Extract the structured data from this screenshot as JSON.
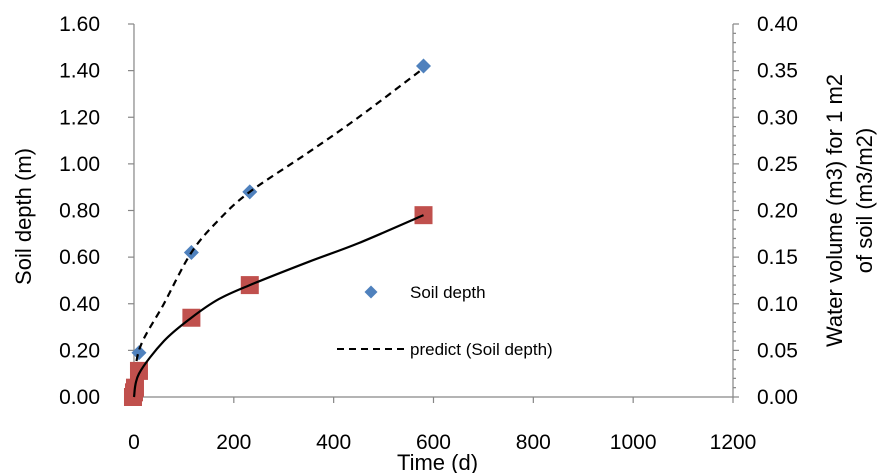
{
  "chart_data": {
    "type": "scatter",
    "xlabel": "Time (d)",
    "ylabel": "Soil depth (m)",
    "y2label_line1": "Water volume (m3) for  1 m2",
    "y2label_line2": "of soil (m3/m2)",
    "xlim": [
      -20,
      1200
    ],
    "x_ticks": [
      0,
      200,
      400,
      600,
      800,
      1000,
      1200
    ],
    "ylim": [
      0,
      1.6
    ],
    "y_ticks": [
      "0.00",
      "0.20",
      "0.40",
      "0.60",
      "0.80",
      "1.00",
      "1.20",
      "1.40",
      "1.60"
    ],
    "y2lim": [
      0,
      0.4
    ],
    "y2_ticks": [
      "0.00",
      "0.05",
      "0.10",
      "0.15",
      "0.20",
      "0.25",
      "0.30",
      "0.35",
      "0.40"
    ],
    "legend_position": "center",
    "series": [
      {
        "name": "Soil depth",
        "axis": "left",
        "marker": "diamond",
        "color": "#4f81bd",
        "x": [
          10,
          115,
          232,
          580
        ],
        "y": [
          0.19,
          0.62,
          0.88,
          1.42
        ]
      },
      {
        "name": "predict (Soil depth)",
        "axis": "left",
        "style": "dashed",
        "color": "#000000",
        "x": [
          0,
          10,
          60,
          115,
          170,
          232,
          350,
          450,
          580
        ],
        "y": [
          0.0,
          0.2,
          0.4,
          0.62,
          0.76,
          0.88,
          1.05,
          1.2,
          1.41
        ]
      },
      {
        "axis": "right",
        "marker": "square",
        "color": "#c0504d",
        "x": [
          -2,
          0,
          2,
          10,
          115,
          232,
          580
        ],
        "y": [
          0.0,
          0.005,
          0.01,
          0.028,
          0.085,
          0.12,
          0.195
        ]
      },
      {
        "axis": "right",
        "style": "solid",
        "color": "#000000",
        "x": [
          0,
          10,
          60,
          115,
          170,
          232,
          350,
          450,
          580
        ],
        "y": [
          0.0,
          0.025,
          0.06,
          0.085,
          0.105,
          0.12,
          0.145,
          0.165,
          0.195
        ]
      }
    ]
  }
}
